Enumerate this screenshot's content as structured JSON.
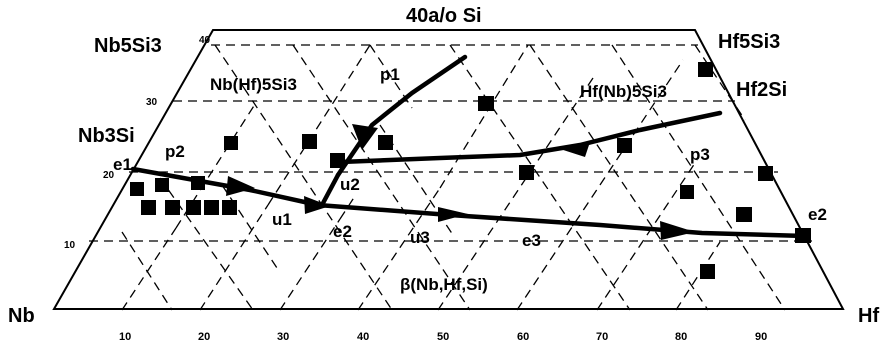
{
  "diagram": {
    "title": "40a/o Si",
    "corners": {
      "nb": "Nb",
      "hf": "Hf",
      "nb5si3": "Nb5Si3",
      "nb3si": "Nb3Si",
      "hf5si3": "Hf5Si3",
      "hf2si": "Hf2Si"
    },
    "phase_regions": {
      "nb_hf_5si3": "Nb(Hf)5Si3",
      "hf_nb_5si3": "Hf(Nb)5Si3",
      "beta": "β(Nb,Hf,Si)"
    },
    "invariant_points": {
      "e1": "e1",
      "p1": "p1",
      "p2": "p2",
      "p3": "p3",
      "u1": "u1",
      "u2": "u2",
      "u3": "u3",
      "e2_mid": "e2",
      "e2_right": "e2",
      "e3": "e3"
    },
    "hf_ticks": [
      "10",
      "20",
      "30",
      "40",
      "50",
      "60",
      "70",
      "80",
      "90"
    ],
    "si_ticks": [
      "10",
      "20",
      "30",
      "40"
    ]
  }
}
